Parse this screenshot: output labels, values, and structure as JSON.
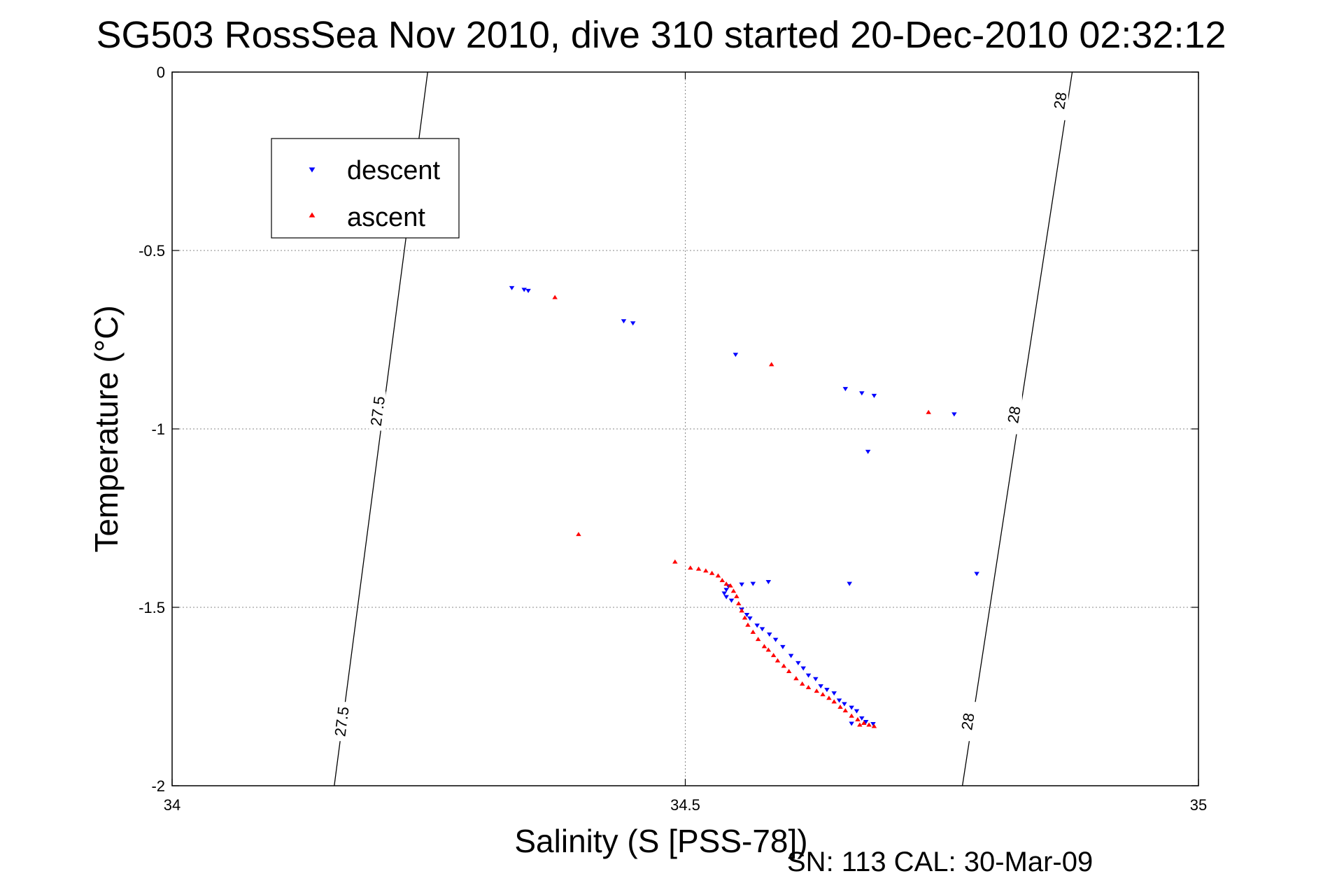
{
  "chart_data": {
    "type": "scatter",
    "title": "SG503 RossSea Nov 2010, dive 310 started 20-Dec-2010 02:32:12",
    "xlabel": "Salinity (S [PSS-78])",
    "ylabel": "Temperature (°C)",
    "xlim": [
      34,
      35
    ],
    "ylim": [
      -2,
      0
    ],
    "xticks": [
      "34",
      "34.5",
      "35"
    ],
    "yticks": [
      "0",
      "-0.5",
      "-1",
      "-1.5",
      "-2"
    ],
    "grid": true,
    "legend_position": "top-left",
    "footer": "SN: 113  CAL: 30-Mar-09",
    "density_contours": [
      {
        "label": "27.5",
        "x_at_top": 34.249,
        "x_at_bottom": 34.158,
        "label_positions": [
          [
            34.2,
            -0.95
          ],
          [
            34.165,
            -1.82
          ]
        ]
      },
      {
        "label": "28",
        "x_at_top": 34.877,
        "x_at_bottom": 34.77,
        "label_positions": [
          [
            34.865,
            -0.08
          ],
          [
            34.82,
            -0.96
          ],
          [
            34.775,
            -1.82
          ]
        ]
      }
    ],
    "series": [
      {
        "name": "descent",
        "color": "#0000ff",
        "marker": "triangle-down",
        "points": [
          [
            34.331,
            -0.604
          ],
          [
            34.343,
            -0.609
          ],
          [
            34.347,
            -0.612
          ],
          [
            34.44,
            -0.697
          ],
          [
            34.449,
            -0.703
          ],
          [
            34.549,
            -0.791
          ],
          [
            34.656,
            -0.887
          ],
          [
            34.672,
            -0.899
          ],
          [
            34.684,
            -0.906
          ],
          [
            34.762,
            -0.958
          ],
          [
            34.678,
            -1.063
          ],
          [
            34.784,
            -1.405
          ],
          [
            34.66,
            -1.433
          ],
          [
            34.581,
            -1.428
          ],
          [
            34.566,
            -1.433
          ],
          [
            34.555,
            -1.435
          ],
          [
            34.542,
            -1.44
          ],
          [
            34.54,
            -1.45
          ],
          [
            34.538,
            -1.46
          ],
          [
            34.54,
            -1.47
          ],
          [
            34.545,
            -1.48
          ],
          [
            34.555,
            -1.505
          ],
          [
            34.56,
            -1.52
          ],
          [
            34.563,
            -1.53
          ],
          [
            34.57,
            -1.55
          ],
          [
            34.575,
            -1.56
          ],
          [
            34.582,
            -1.575
          ],
          [
            34.588,
            -1.59
          ],
          [
            34.595,
            -1.61
          ],
          [
            34.603,
            -1.635
          ],
          [
            34.61,
            -1.655
          ],
          [
            34.615,
            -1.67
          ],
          [
            34.62,
            -1.69
          ],
          [
            34.627,
            -1.7
          ],
          [
            34.632,
            -1.72
          ],
          [
            34.638,
            -1.73
          ],
          [
            34.645,
            -1.74
          ],
          [
            34.65,
            -1.76
          ],
          [
            34.655,
            -1.77
          ],
          [
            34.662,
            -1.78
          ],
          [
            34.667,
            -1.79
          ],
          [
            34.672,
            -1.81
          ],
          [
            34.676,
            -1.82
          ],
          [
            34.683,
            -1.826
          ],
          [
            34.662,
            -1.825
          ]
        ]
      },
      {
        "name": "ascent",
        "color": "#ff0000",
        "marker": "triangle-up",
        "points": [
          [
            34.373,
            -0.632
          ],
          [
            34.584,
            -0.82
          ],
          [
            34.737,
            -0.954
          ],
          [
            34.396,
            -1.296
          ],
          [
            34.49,
            -1.373
          ],
          [
            34.505,
            -1.39
          ],
          [
            34.513,
            -1.393
          ],
          [
            34.52,
            -1.398
          ],
          [
            34.526,
            -1.405
          ],
          [
            34.532,
            -1.412
          ],
          [
            34.536,
            -1.425
          ],
          [
            34.54,
            -1.435
          ],
          [
            34.544,
            -1.44
          ],
          [
            34.547,
            -1.455
          ],
          [
            34.55,
            -1.47
          ],
          [
            34.552,
            -1.49
          ],
          [
            34.555,
            -1.51
          ],
          [
            34.558,
            -1.53
          ],
          [
            34.561,
            -1.55
          ],
          [
            34.566,
            -1.57
          ],
          [
            34.571,
            -1.59
          ],
          [
            34.577,
            -1.61
          ],
          [
            34.581,
            -1.62
          ],
          [
            34.586,
            -1.635
          ],
          [
            34.59,
            -1.65
          ],
          [
            34.596,
            -1.665
          ],
          [
            34.601,
            -1.68
          ],
          [
            34.608,
            -1.7
          ],
          [
            34.614,
            -1.715
          ],
          [
            34.62,
            -1.725
          ],
          [
            34.628,
            -1.735
          ],
          [
            34.634,
            -1.745
          ],
          [
            34.64,
            -1.755
          ],
          [
            34.645,
            -1.765
          ],
          [
            34.651,
            -1.78
          ],
          [
            34.656,
            -1.79
          ],
          [
            34.662,
            -1.805
          ],
          [
            34.668,
            -1.815
          ],
          [
            34.674,
            -1.825
          ],
          [
            34.679,
            -1.83
          ],
          [
            34.684,
            -1.834
          ],
          [
            34.67,
            -1.83
          ]
        ]
      }
    ]
  }
}
